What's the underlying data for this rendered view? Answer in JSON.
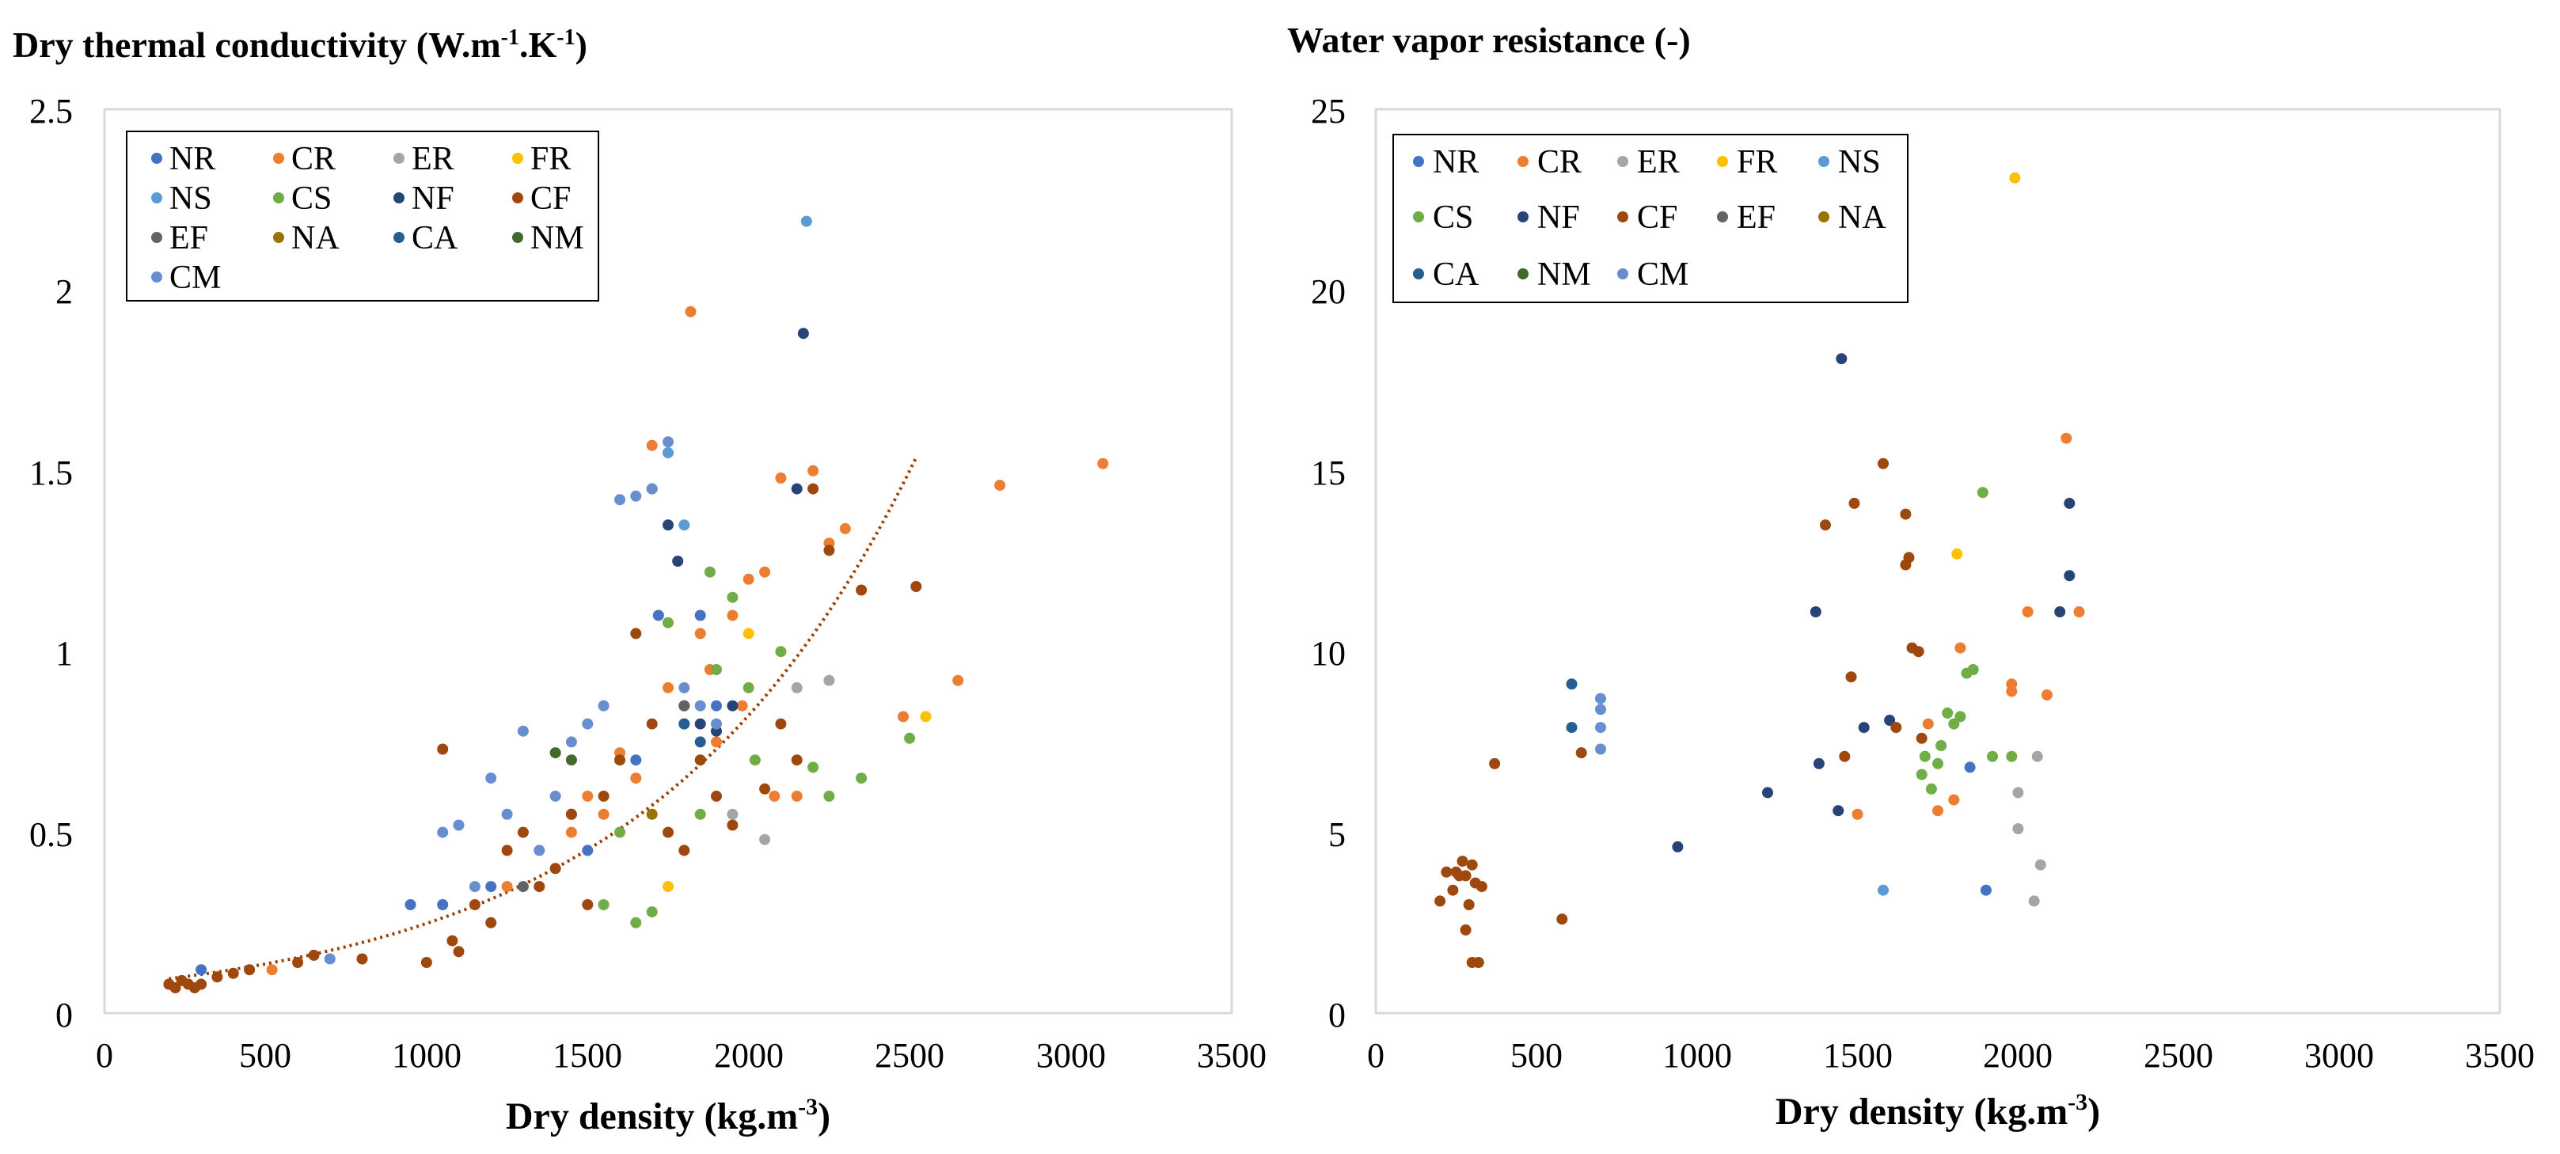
{
  "chart_data": [
    {
      "type": "scatter",
      "title": "Dry thermal conductivity (W.m-1.K-1)",
      "title_main": "Dry thermal conductivity (W.m",
      "title_sup1": "-1",
      "title_mid": ".K",
      "title_sup2": "-1",
      "title_end": ")",
      "xlabel": "Dry density (kg.m-3)",
      "xlabel_main": "Dry density (kg.m",
      "xlabel_sup": "-3",
      "xlabel_end": ")",
      "ylabel": "",
      "xlim": [
        0,
        3500
      ],
      "ylim": [
        0,
        2.5
      ],
      "xticks": [
        "0",
        "500",
        "1000",
        "1500",
        "2000",
        "2500",
        "3000",
        "3500"
      ],
      "yticks": [
        "0",
        "0.5",
        "1",
        "1.5",
        "2",
        "2.5"
      ],
      "legend_position": "top-left",
      "trendline": {
        "type": "exponential",
        "a": 0.0747,
        "b": 0.0012,
        "x_range": [
          200,
          2520
        ],
        "color": "#9e3c00"
      },
      "series": [
        {
          "name": "NR",
          "color": "#4472c4",
          "points": [
            [
              300,
              0.12
            ],
            [
              950,
              0.3
            ],
            [
              1050,
              0.3
            ],
            [
              1200,
              0.35
            ],
            [
              1450,
              0.55
            ],
            [
              1500,
              0.45
            ],
            [
              1650,
              0.7
            ],
            [
              1720,
              1.1
            ],
            [
              1850,
              1.1
            ],
            [
              1900,
              0.85
            ]
          ]
        },
        {
          "name": "CR",
          "color": "#ed7d31",
          "points": [
            [
              520,
              0.12
            ],
            [
              1250,
              0.35
            ],
            [
              1450,
              0.5
            ],
            [
              1500,
              0.6
            ],
            [
              1550,
              0.55
            ],
            [
              1600,
              0.72
            ],
            [
              1650,
              0.65
            ],
            [
              1700,
              1.57
            ],
            [
              1750,
              0.9
            ],
            [
              1800,
              0.8
            ],
            [
              1820,
              1.94
            ],
            [
              1850,
              1.05
            ],
            [
              1880,
              0.95
            ],
            [
              1900,
              0.75
            ],
            [
              1950,
              1.1
            ],
            [
              1980,
              0.85
            ],
            [
              2000,
              1.2
            ],
            [
              2050,
              1.22
            ],
            [
              2080,
              0.6
            ],
            [
              2100,
              1.48
            ],
            [
              2150,
              0.6
            ],
            [
              2200,
              1.5
            ],
            [
              2250,
              1.3
            ],
            [
              2300,
              1.34
            ],
            [
              2480,
              0.82
            ],
            [
              2650,
              0.92
            ],
            [
              2780,
              1.46
            ],
            [
              3100,
              1.52
            ]
          ]
        },
        {
          "name": "ER",
          "color": "#a5a5a5",
          "points": [
            [
              1950,
              0.55
            ],
            [
              2050,
              0.48
            ],
            [
              2150,
              0.9
            ],
            [
              2250,
              0.92
            ]
          ]
        },
        {
          "name": "FR",
          "color": "#ffc000",
          "points": [
            [
              1750,
              0.35
            ],
            [
              2000,
              1.05
            ],
            [
              2550,
              0.82
            ]
          ]
        },
        {
          "name": "NS",
          "color": "#5b9bd5",
          "points": [
            [
              1750,
              1.55
            ],
            [
              1800,
              1.35
            ],
            [
              2180,
              2.19
            ]
          ]
        },
        {
          "name": "CS",
          "color": "#70ad47",
          "points": [
            [
              1550,
              0.3
            ],
            [
              1600,
              0.5
            ],
            [
              1650,
              0.25
            ],
            [
              1700,
              0.28
            ],
            [
              1750,
              1.08
            ],
            [
              1800,
              0.8
            ],
            [
              1850,
              0.55
            ],
            [
              1880,
              1.22
            ],
            [
              1900,
              0.95
            ],
            [
              1950,
              1.15
            ],
            [
              2000,
              0.9
            ],
            [
              2020,
              0.7
            ],
            [
              2100,
              1.0
            ],
            [
              2200,
              0.68
            ],
            [
              2250,
              0.6
            ],
            [
              2350,
              0.65
            ],
            [
              2500,
              0.76
            ]
          ]
        },
        {
          "name": "NF",
          "color": "#264478",
          "points": [
            [
              1700,
              1.45
            ],
            [
              1750,
              1.35
            ],
            [
              1780,
              1.25
            ],
            [
              1800,
              0.85
            ],
            [
              1850,
              0.8
            ],
            [
              1900,
              0.78
            ],
            [
              1950,
              0.85
            ],
            [
              2150,
              1.45
            ],
            [
              2170,
              1.88
            ]
          ]
        },
        {
          "name": "CF",
          "color": "#9e480e",
          "points": [
            [
              200,
              0.08
            ],
            [
              220,
              0.07
            ],
            [
              240,
              0.09
            ],
            [
              260,
              0.08
            ],
            [
              280,
              0.07
            ],
            [
              300,
              0.08
            ],
            [
              350,
              0.1
            ],
            [
              400,
              0.11
            ],
            [
              450,
              0.12
            ],
            [
              600,
              0.14
            ],
            [
              650,
              0.16
            ],
            [
              800,
              0.15
            ],
            [
              1000,
              0.14
            ],
            [
              1050,
              0.73
            ],
            [
              1080,
              0.2
            ],
            [
              1100,
              0.17
            ],
            [
              1150,
              0.3
            ],
            [
              1200,
              0.25
            ],
            [
              1250,
              0.45
            ],
            [
              1300,
              0.5
            ],
            [
              1350,
              0.35
            ],
            [
              1400,
              0.4
            ],
            [
              1450,
              0.55
            ],
            [
              1500,
              0.3
            ],
            [
              1550,
              0.6
            ],
            [
              1600,
              0.7
            ],
            [
              1650,
              1.05
            ],
            [
              1700,
              0.8
            ],
            [
              1750,
              0.5
            ],
            [
              1800,
              0.45
            ],
            [
              1850,
              0.7
            ],
            [
              1900,
              0.6
            ],
            [
              1950,
              0.52
            ],
            [
              2050,
              0.62
            ],
            [
              2100,
              0.8
            ],
            [
              2150,
              0.7
            ],
            [
              2200,
              1.45
            ],
            [
              2250,
              1.28
            ],
            [
              2350,
              1.17
            ],
            [
              2520,
              1.18
            ]
          ]
        },
        {
          "name": "EF",
          "color": "#636363",
          "points": [
            [
              1300,
              0.35
            ],
            [
              1800,
              0.85
            ]
          ]
        },
        {
          "name": "NA",
          "color": "#997300",
          "points": [
            [
              1700,
              0.55
            ]
          ]
        },
        {
          "name": "CA",
          "color": "#255e91",
          "points": [
            [
              1800,
              0.8
            ],
            [
              1850,
              0.75
            ]
          ]
        },
        {
          "name": "NM",
          "color": "#43682b",
          "points": [
            [
              1400,
              0.72
            ],
            [
              1450,
              0.7
            ]
          ]
        },
        {
          "name": "CM",
          "color": "#698ed0",
          "points": [
            [
              700,
              0.15
            ],
            [
              1050,
              0.5
            ],
            [
              1100,
              0.52
            ],
            [
              1150,
              0.35
            ],
            [
              1200,
              0.65
            ],
            [
              1250,
              0.55
            ],
            [
              1300,
              0.78
            ],
            [
              1350,
              0.45
            ],
            [
              1400,
              0.6
            ],
            [
              1450,
              0.75
            ],
            [
              1500,
              0.8
            ],
            [
              1550,
              0.85
            ],
            [
              1600,
              1.42
            ],
            [
              1650,
              1.43
            ],
            [
              1700,
              1.45
            ],
            [
              1750,
              1.58
            ],
            [
              1800,
              0.9
            ],
            [
              1850,
              0.85
            ],
            [
              1900,
              0.8
            ]
          ]
        }
      ]
    },
    {
      "type": "scatter",
      "title": "Water vapor resistance (-)",
      "xlabel": "Dry density (kg.m-3)",
      "xlabel_main": "Dry density (kg.m",
      "xlabel_sup": "-3",
      "xlabel_end": ")",
      "ylabel": "",
      "xlim": [
        0,
        3500
      ],
      "ylim": [
        0,
        25
      ],
      "xticks": [
        "0",
        "500",
        "1000",
        "1500",
        "2000",
        "2500",
        "3000",
        "3500"
      ],
      "yticks": [
        "0",
        "5",
        "10",
        "15",
        "20",
        "25"
      ],
      "legend_position": "top-left",
      "series": [
        {
          "name": "NR",
          "color": "#4472c4",
          "points": [
            [
              1900,
              3.4
            ],
            [
              1850,
              6.8
            ]
          ]
        },
        {
          "name": "CR",
          "color": "#ed7d31",
          "points": [
            [
              1500,
              5.5
            ],
            [
              1720,
              8.0
            ],
            [
              1750,
              5.6
            ],
            [
              1800,
              5.9
            ],
            [
              1820,
              10.1
            ],
            [
              1980,
              8.9
            ],
            [
              1980,
              9.1
            ],
            [
              2030,
              11.1
            ],
            [
              2150,
              15.9
            ],
            [
              2190,
              11.1
            ],
            [
              2090,
              8.8
            ]
          ]
        },
        {
          "name": "ER",
          "color": "#a5a5a5",
          "points": [
            [
              2000,
              6.1
            ],
            [
              2000,
              5.1
            ],
            [
              2050,
              3.1
            ],
            [
              2070,
              4.1
            ],
            [
              2060,
              7.1
            ]
          ]
        },
        {
          "name": "FR",
          "color": "#ffc000",
          "points": [
            [
              1990,
              23.1
            ],
            [
              1810,
              12.7
            ]
          ]
        },
        {
          "name": "NS",
          "color": "#5b9bd5",
          "points": [
            [
              1580,
              3.4
            ]
          ]
        },
        {
          "name": "CS",
          "color": "#70ad47",
          "points": [
            [
              1700,
              6.6
            ],
            [
              1710,
              7.1
            ],
            [
              1730,
              6.2
            ],
            [
              1750,
              6.9
            ],
            [
              1760,
              7.4
            ],
            [
              1780,
              8.3
            ],
            [
              1800,
              8.0
            ],
            [
              1820,
              8.2
            ],
            [
              1840,
              9.4
            ],
            [
              1860,
              9.5
            ],
            [
              1890,
              14.4
            ],
            [
              1920,
              7.1
            ],
            [
              1980,
              7.1
            ]
          ]
        },
        {
          "name": "NF",
          "color": "#264478",
          "points": [
            [
              940,
              4.6
            ],
            [
              1220,
              6.1
            ],
            [
              1380,
              6.9
            ],
            [
              1440,
              5.6
            ],
            [
              1450,
              18.1
            ],
            [
              1370,
              11.1
            ],
            [
              1520,
              7.9
            ],
            [
              1600,
              8.1
            ],
            [
              2130,
              11.1
            ],
            [
              2160,
              14.1
            ],
            [
              2160,
              12.1
            ]
          ]
        },
        {
          "name": "CF",
          "color": "#9e480e",
          "points": [
            [
              200,
              3.1
            ],
            [
              220,
              3.9
            ],
            [
              240,
              3.4
            ],
            [
              250,
              3.9
            ],
            [
              260,
              3.8
            ],
            [
              270,
              4.2
            ],
            [
              280,
              3.8
            ],
            [
              280,
              2.3
            ],
            [
              290,
              3.0
            ],
            [
              300,
              4.1
            ],
            [
              300,
              1.4
            ],
            [
              310,
              3.6
            ],
            [
              320,
              1.4
            ],
            [
              330,
              3.5
            ],
            [
              370,
              6.9
            ],
            [
              580,
              2.6
            ],
            [
              640,
              7.2
            ],
            [
              1400,
              13.5
            ],
            [
              1460,
              7.1
            ],
            [
              1480,
              9.3
            ],
            [
              1490,
              14.1
            ],
            [
              1580,
              15.2
            ],
            [
              1620,
              7.9
            ],
            [
              1650,
              13.8
            ],
            [
              1650,
              12.4
            ],
            [
              1660,
              12.6
            ],
            [
              1670,
              10.1
            ],
            [
              1690,
              10.0
            ],
            [
              1700,
              7.6
            ]
          ]
        },
        {
          "name": "EF",
          "color": "#636363",
          "points": []
        },
        {
          "name": "NA",
          "color": "#997300",
          "points": []
        },
        {
          "name": "CA",
          "color": "#255e91",
          "points": [
            [
              610,
              7.9
            ],
            [
              610,
              9.1
            ]
          ]
        },
        {
          "name": "NM",
          "color": "#43682b",
          "points": []
        },
        {
          "name": "CM",
          "color": "#698ed0",
          "points": [
            [
              700,
              8.7
            ],
            [
              700,
              8.4
            ],
            [
              700,
              7.9
            ],
            [
              700,
              7.3
            ]
          ]
        }
      ]
    }
  ]
}
